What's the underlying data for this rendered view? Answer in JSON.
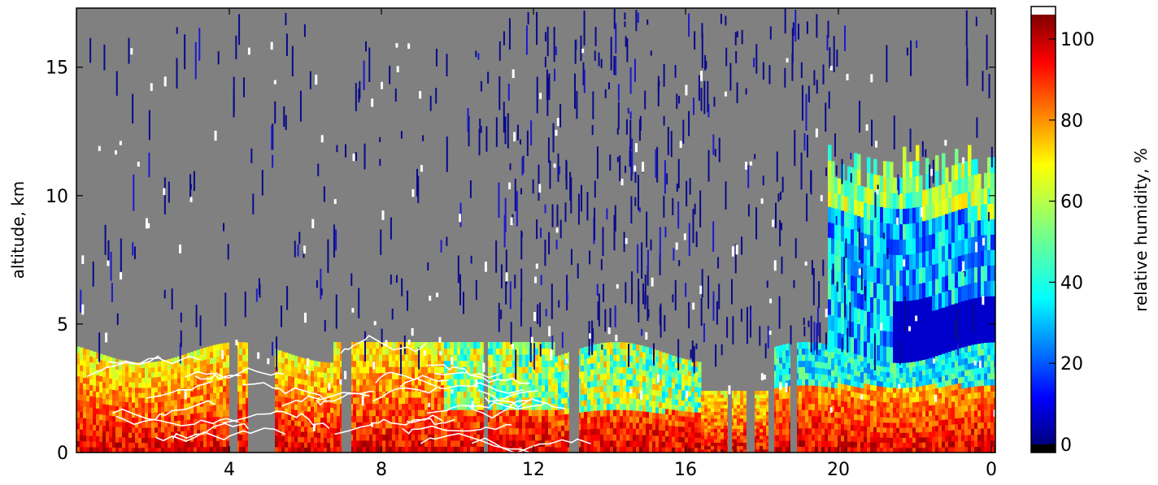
{
  "chart_data": {
    "type": "heatmap",
    "title": "",
    "xlabel": "",
    "ylabel": "altitude, km",
    "x_ticks": [
      "4",
      "8",
      "12",
      "16",
      "20",
      "0"
    ],
    "y_ticks": [
      "0",
      "5",
      "10",
      "15"
    ],
    "ylim": [
      0,
      17.3
    ],
    "colorbar": {
      "label": "relative humidity, %",
      "range": [
        0,
        106
      ],
      "ticks": [
        "0",
        "20",
        "40",
        "60",
        "80",
        "100"
      ],
      "colormap": "jet",
      "over_color": "#ffffff",
      "under_color": "#000000"
    },
    "background_color": "#808080",
    "layers": [
      {
        "x_from_tick": 0.0,
        "x_to_tick": 5.7,
        "top_km": 3.9,
        "rh_surface": 90,
        "rh_top": 68
      },
      {
        "x_from_tick": 1.2,
        "x_to_tick": 3.4,
        "top_km": 4.5,
        "rh_surface": 92,
        "rh_top": 30
      },
      {
        "x_from_tick": 3.8,
        "x_to_tick": 5.8,
        "top_km": 2.2,
        "rh_surface": 65,
        "rh_top": 48
      },
      {
        "x_from_tick": 3.7,
        "x_to_tick": 5.9,
        "top_km": 11.5,
        "rh_surface": 20,
        "rh_top": 10
      }
    ],
    "notes_upper_air": "scattered low-humidity streaks (~5%)",
    "white_contours_region": "below ~4 km, left half"
  }
}
